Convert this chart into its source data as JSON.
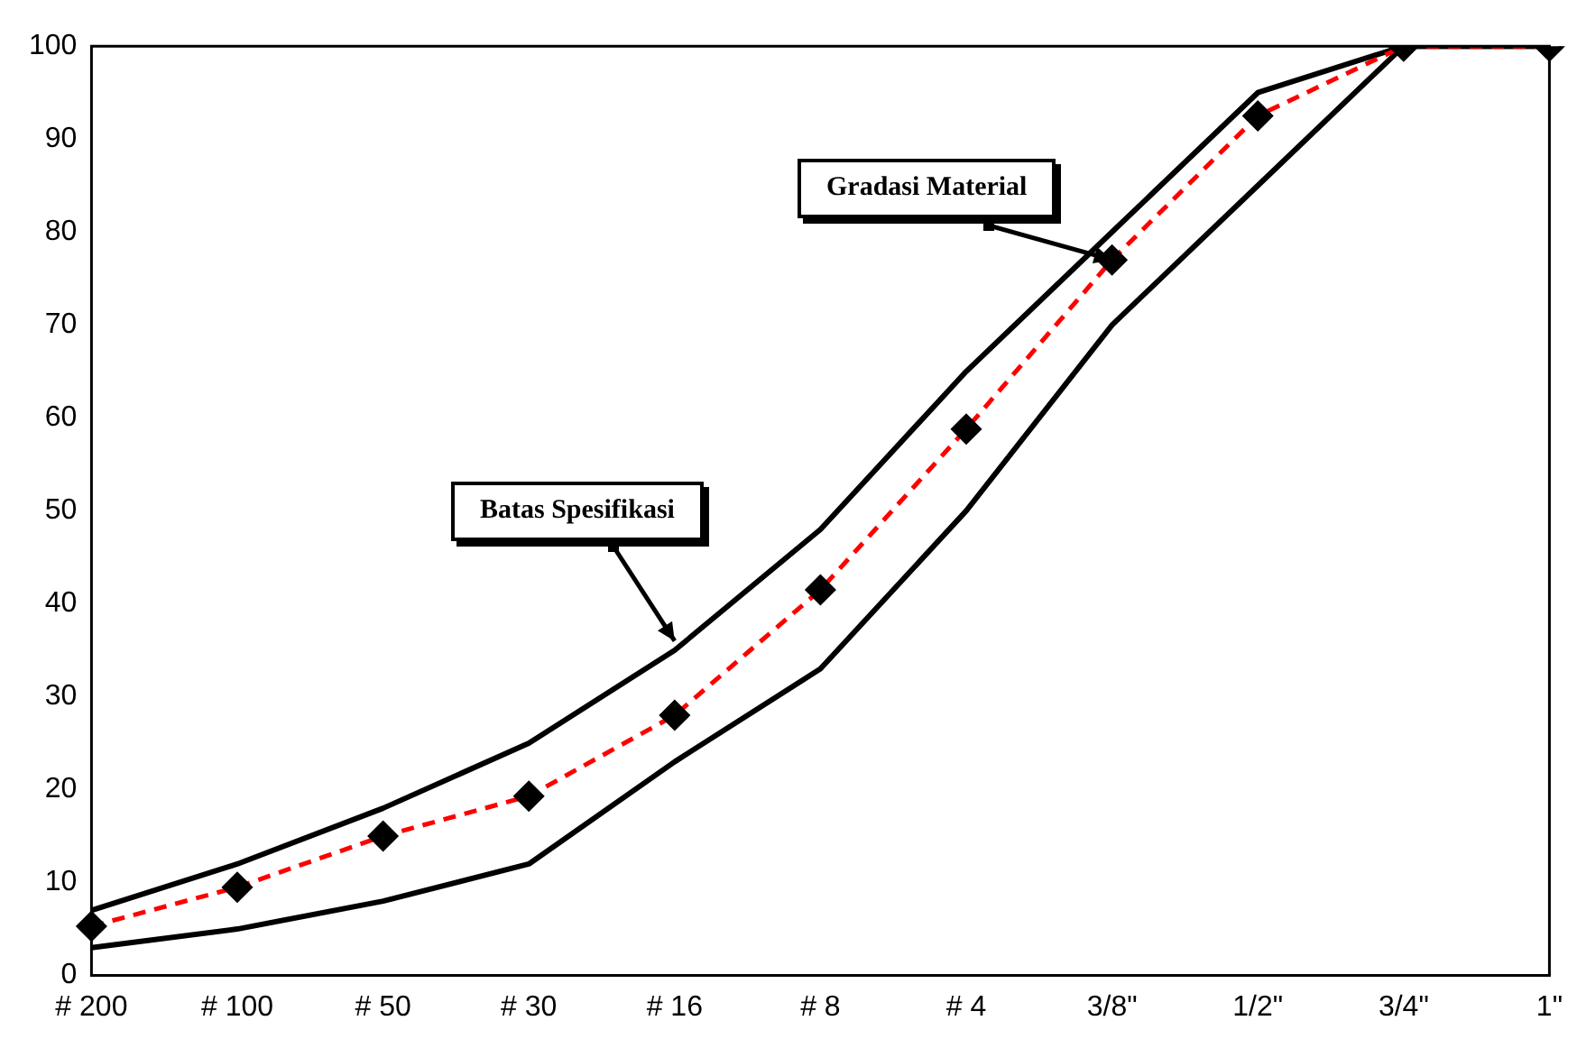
{
  "chart_data": {
    "type": "line",
    "categories": [
      "# 200",
      "# 100",
      "# 50",
      "# 30",
      "# 16",
      "# 8",
      "# 4",
      "3/8\"",
      "1/2\"",
      "3/4\"",
      "1\""
    ],
    "series": [
      {
        "color": "#000000",
        "line_style": "solid",
        "marker": "none",
        "values": [
          7,
          12,
          18,
          25,
          35,
          48,
          65,
          80,
          95,
          100,
          100
        ]
      },
      {
        "color": "#000000",
        "line_style": "solid",
        "marker": "none",
        "values": [
          3,
          5,
          8,
          12,
          23,
          33,
          50,
          70,
          85,
          100,
          100
        ]
      },
      {
        "color": "#ff0000",
        "line_style": "dashed",
        "marker": "diamond",
        "colors": [
          "#000000",
          "#000000",
          "#000000",
          "#000000",
          "#000000",
          "#000000",
          "#000000",
          "#000000",
          "#000000",
          "#000000",
          "#000000"
        ],
        "values": [
          5.3,
          9.5,
          15,
          19.3,
          28,
          41.5,
          58.8,
          77,
          92.5,
          100,
          100
        ]
      }
    ],
    "ylim": [
      0,
      100
    ],
    "yticks": [
      0,
      10,
      20,
      30,
      40,
      50,
      60,
      70,
      80,
      90,
      100
    ],
    "grid": false,
    "legend": false,
    "annotations": [
      {
        "text": "Gradasi Material",
        "x": "3/8\"",
        "y": 77
      },
      {
        "text": "Batas Spesifikasi",
        "x": "# 16",
        "y": 36
      }
    ]
  }
}
